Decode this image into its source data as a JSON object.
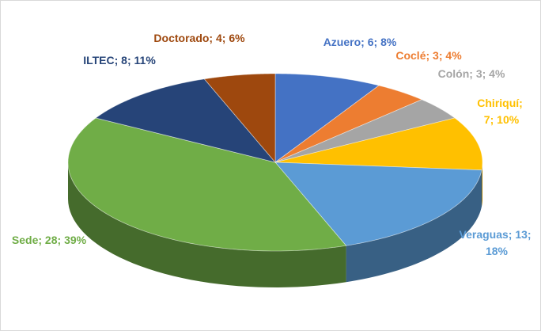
{
  "chart_data": {
    "type": "pie3d",
    "categories": [
      "Azuero",
      "Coclé",
      "Colón",
      "Chiriquí",
      "Veraguas",
      "Sede",
      "ILTEC",
      "Doctorado"
    ],
    "values": [
      6,
      3,
      3,
      7,
      13,
      28,
      8,
      4
    ],
    "value_labels": [
      "8%",
      "4%",
      "4%",
      "10%",
      "18%",
      "39%",
      "11%",
      "6%"
    ],
    "label_separator": "; ",
    "colors": [
      "#4472c4",
      "#ed7d31",
      "#a5a5a5",
      "#ffc000",
      "#5b9bd5",
      "#70ad47",
      "#264478",
      "#9e480e"
    ]
  }
}
